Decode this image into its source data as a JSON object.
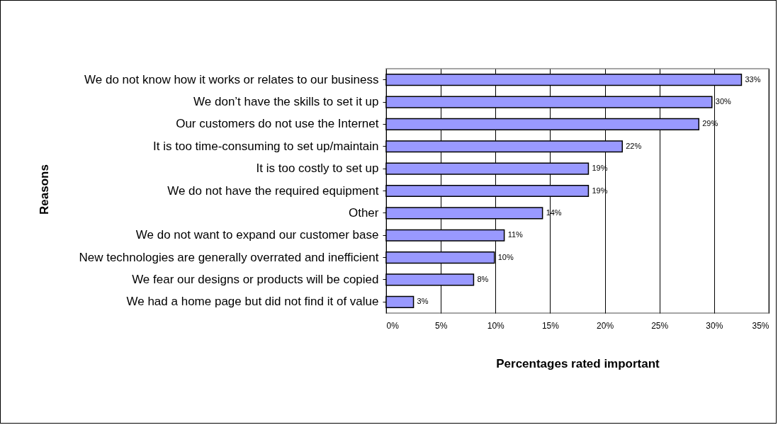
{
  "chart_data": {
    "type": "bar",
    "orientation": "horizontal",
    "xlabel": "Percentages rated important",
    "ylabel": "Reasons",
    "categories": [
      "We do not know how it works or relates to our business",
      "We don’t have the skills to set it up",
      "Our customers do not use the Internet",
      "It is too time-consuming  to set up/maintain",
      "It is too costly to set up",
      "We do not have the required equipment",
      "Other",
      "We do not want to expand our customer base",
      "New technologies are generally overrated and inefficient",
      "We fear our designs or products will be copied",
      "We had a home page but did not find it of value"
    ],
    "values": [
      32.5,
      29.8,
      28.6,
      21.6,
      18.5,
      18.5,
      14.3,
      10.8,
      9.9,
      8.0,
      2.5
    ],
    "value_labels": [
      "33%",
      "30%",
      "29%",
      "22%",
      "19%",
      "19%",
      "14%",
      "11%",
      "10%",
      "8%",
      "3%"
    ],
    "color": "#9999ff",
    "xlim": [
      0,
      35
    ],
    "xticks": [
      {
        "value": 0,
        "label": "0%"
      },
      {
        "value": 5,
        "label": "5%"
      },
      {
        "value": 10,
        "label": "10%"
      },
      {
        "value": 15,
        "label": "15%"
      },
      {
        "value": 20,
        "label": "20%"
      },
      {
        "value": 25,
        "label": "25%"
      },
      {
        "value": 30,
        "label": "30%"
      },
      {
        "value": 35,
        "label": "35%"
      }
    ],
    "grid": "x"
  }
}
